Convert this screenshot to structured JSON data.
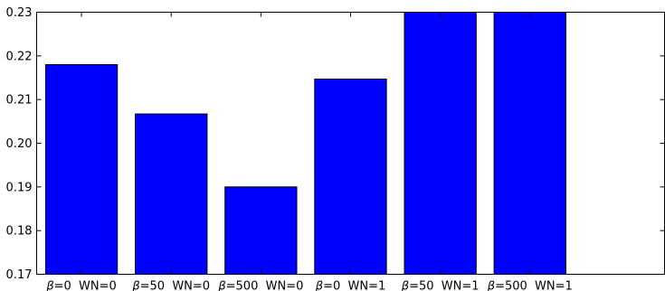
{
  "chart_data": {
    "type": "bar",
    "categories": [
      {
        "beta": "β",
        "rest": "=0  WN=0"
      },
      {
        "beta": "β",
        "rest": "=50  WN=0"
      },
      {
        "beta": "β",
        "rest": "=500  WN=0"
      },
      {
        "beta": "β",
        "rest": "=0  WN=1"
      },
      {
        "beta": "β",
        "rest": "=50  WN=1"
      },
      {
        "beta": "β",
        "rest": "=500  WN=1"
      }
    ],
    "values": [
      0.218,
      0.2067,
      0.19,
      0.2147,
      0.23,
      0.23
    ],
    "ylim": [
      0.17,
      0.23
    ],
    "yticks": [
      "0.17",
      "0.18",
      "0.19",
      "0.20",
      "0.21",
      "0.22",
      "0.23"
    ],
    "bar_color": "#0000ff",
    "grid": false,
    "title": "",
    "xlabel": "",
    "ylabel": ""
  }
}
